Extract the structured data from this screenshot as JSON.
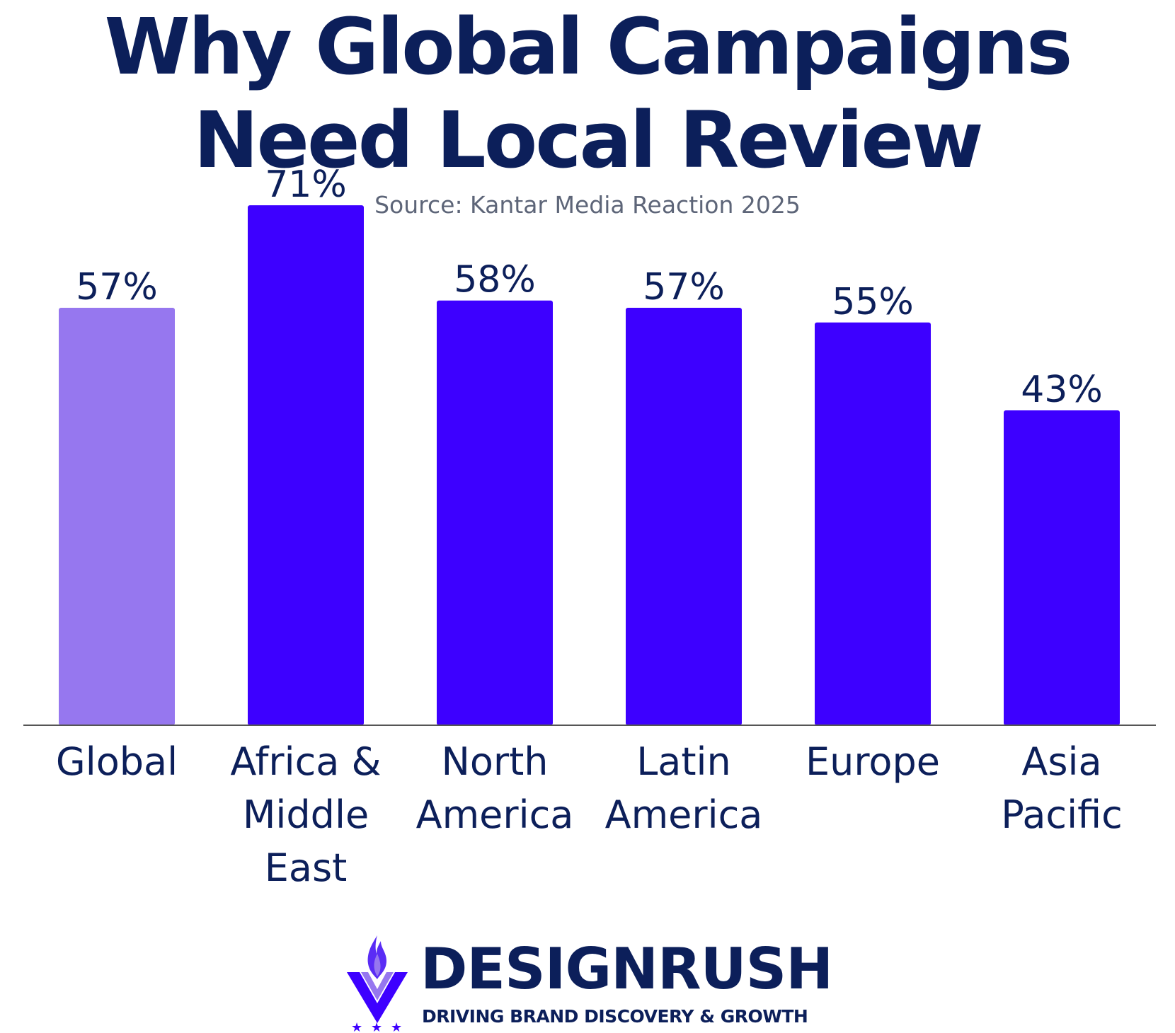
{
  "title": {
    "line1": "Why Global Campaigns",
    "line2": "Need Local Review"
  },
  "subtitle": "Source: Kantar Media Reaction 2025",
  "colors": {
    "title": "#0c1f5a",
    "subtitle": "#5d6578",
    "highlight_bar": "#9677ef",
    "bar": "#3d00ff",
    "axis": "#555555"
  },
  "chart_data": {
    "type": "bar",
    "categories": [
      [
        "Global"
      ],
      [
        "Africa &",
        "Middle",
        "East"
      ],
      [
        "North",
        "America"
      ],
      [
        "Latin",
        "America"
      ],
      [
        "Europe"
      ],
      [
        "Asia",
        "Pacific"
      ]
    ],
    "values": [
      57,
      71,
      58,
      57,
      55,
      43
    ],
    "data_labels": [
      "57%",
      "71%",
      "58%",
      "57%",
      "55%",
      "43%"
    ],
    "highlight_index": 0,
    "unit": "%",
    "ylim": [
      0,
      100
    ],
    "grid": false
  },
  "logo": {
    "name": "DESIGNRUSH",
    "tagline": "DRIVING BRAND DISCOVERY & GROWTH"
  }
}
